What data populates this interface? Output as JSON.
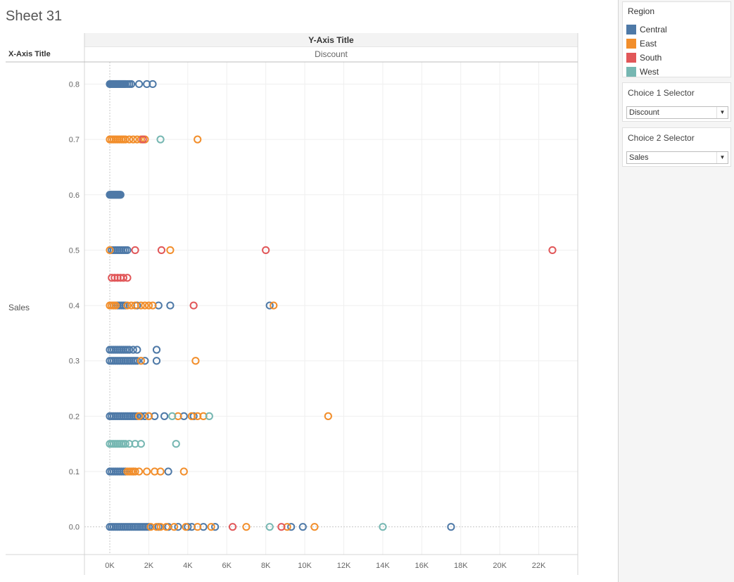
{
  "sheet": {
    "title": "Sheet 31"
  },
  "column_header": {
    "axis_title": "Y-Axis Title",
    "field": "Discount"
  },
  "row_header": {
    "axis_title": "X-Axis Title",
    "field": "Sales"
  },
  "legend": {
    "title": "Region",
    "items": [
      {
        "label": "Central",
        "color": "#4e79a7"
      },
      {
        "label": "East",
        "color": "#f28e2b"
      },
      {
        "label": "South",
        "color": "#e15759"
      },
      {
        "label": "West",
        "color": "#76b7b2"
      }
    ]
  },
  "selectors": [
    {
      "title": "Choice 1 Selector",
      "value": "Discount"
    },
    {
      "title": "Choice 2 Selector",
      "value": "Sales"
    }
  ],
  "chart_data": {
    "type": "scatter",
    "x_ticks": [
      "0K",
      "2K",
      "4K",
      "6K",
      "8K",
      "10K",
      "12K",
      "14K",
      "16K",
      "18K",
      "20K",
      "22K"
    ],
    "y_ticks": [
      "0.0",
      "0.1",
      "0.2",
      "0.3",
      "0.4",
      "0.5",
      "0.6",
      "0.7",
      "0.8"
    ],
    "xlim": [
      -1300,
      24000
    ],
    "ylim": [
      -0.05,
      0.84
    ],
    "grid": true,
    "legend_position": "right",
    "mark": "open-circle",
    "series": [
      {
        "name": "Central",
        "points": [
          [
            0.8,
            0
          ],
          [
            0.8,
            50
          ],
          [
            0.8,
            100
          ],
          [
            0.8,
            150
          ],
          [
            0.8,
            200
          ],
          [
            0.8,
            250
          ],
          [
            0.8,
            300
          ],
          [
            0.8,
            350
          ],
          [
            0.8,
            400
          ],
          [
            0.8,
            450
          ],
          [
            0.8,
            500
          ],
          [
            0.8,
            550
          ],
          [
            0.8,
            600
          ],
          [
            0.8,
            650
          ],
          [
            0.8,
            700
          ],
          [
            0.8,
            750
          ],
          [
            0.8,
            800
          ],
          [
            0.8,
            900
          ],
          [
            0.8,
            1000
          ],
          [
            0.8,
            1100
          ],
          [
            0.8,
            1500
          ],
          [
            0.8,
            1900
          ],
          [
            0.8,
            2200
          ],
          [
            0.6,
            0
          ],
          [
            0.6,
            50
          ],
          [
            0.6,
            100
          ],
          [
            0.6,
            150
          ],
          [
            0.6,
            200
          ],
          [
            0.6,
            250
          ],
          [
            0.6,
            300
          ],
          [
            0.6,
            350
          ],
          [
            0.6,
            400
          ],
          [
            0.6,
            450
          ],
          [
            0.6,
            500
          ],
          [
            0.6,
            550
          ],
          [
            0.5,
            100
          ],
          [
            0.5,
            200
          ],
          [
            0.5,
            300
          ],
          [
            0.5,
            400
          ],
          [
            0.5,
            500
          ],
          [
            0.5,
            600
          ],
          [
            0.5,
            700
          ],
          [
            0.5,
            800
          ],
          [
            0.5,
            900
          ],
          [
            0.4,
            200
          ],
          [
            0.4,
            300
          ],
          [
            0.4,
            400
          ],
          [
            0.4,
            500
          ],
          [
            0.4,
            600
          ],
          [
            0.4,
            700
          ],
          [
            0.4,
            800
          ],
          [
            0.4,
            1400
          ],
          [
            0.4,
            2500
          ],
          [
            0.4,
            3100
          ],
          [
            0.4,
            8200
          ],
          [
            0.32,
            0
          ],
          [
            0.32,
            100
          ],
          [
            0.32,
            200
          ],
          [
            0.32,
            300
          ],
          [
            0.32,
            400
          ],
          [
            0.32,
            500
          ],
          [
            0.32,
            600
          ],
          [
            0.32,
            700
          ],
          [
            0.32,
            800
          ],
          [
            0.32,
            900
          ],
          [
            0.32,
            1000
          ],
          [
            0.32,
            1200
          ],
          [
            0.32,
            1400
          ],
          [
            0.32,
            2400
          ],
          [
            0.3,
            0
          ],
          [
            0.3,
            100
          ],
          [
            0.3,
            200
          ],
          [
            0.3,
            300
          ],
          [
            0.3,
            400
          ],
          [
            0.3,
            500
          ],
          [
            0.3,
            600
          ],
          [
            0.3,
            700
          ],
          [
            0.3,
            800
          ],
          [
            0.3,
            900
          ],
          [
            0.3,
            1000
          ],
          [
            0.3,
            1100
          ],
          [
            0.3,
            1200
          ],
          [
            0.3,
            1300
          ],
          [
            0.3,
            1400
          ],
          [
            0.3,
            1800
          ],
          [
            0.3,
            2400
          ],
          [
            0.2,
            0
          ],
          [
            0.2,
            100
          ],
          [
            0.2,
            200
          ],
          [
            0.2,
            300
          ],
          [
            0.2,
            400
          ],
          [
            0.2,
            500
          ],
          [
            0.2,
            600
          ],
          [
            0.2,
            700
          ],
          [
            0.2,
            800
          ],
          [
            0.2,
            900
          ],
          [
            0.2,
            1000
          ],
          [
            0.2,
            1100
          ],
          [
            0.2,
            1200
          ],
          [
            0.2,
            1300
          ],
          [
            0.2,
            1400
          ],
          [
            0.2,
            1600
          ],
          [
            0.2,
            1800
          ],
          [
            0.2,
            2000
          ],
          [
            0.2,
            2300
          ],
          [
            0.2,
            2800
          ],
          [
            0.2,
            3800
          ],
          [
            0.2,
            4300
          ],
          [
            0.1,
            0
          ],
          [
            0.1,
            100
          ],
          [
            0.1,
            200
          ],
          [
            0.1,
            300
          ],
          [
            0.1,
            400
          ],
          [
            0.1,
            500
          ],
          [
            0.1,
            600
          ],
          [
            0.1,
            700
          ],
          [
            0.1,
            800
          ],
          [
            0.1,
            1200
          ],
          [
            0.1,
            3000
          ],
          [
            0.0,
            0
          ],
          [
            0.0,
            100
          ],
          [
            0.0,
            200
          ],
          [
            0.0,
            300
          ],
          [
            0.0,
            400
          ],
          [
            0.0,
            500
          ],
          [
            0.0,
            600
          ],
          [
            0.0,
            700
          ],
          [
            0.0,
            800
          ],
          [
            0.0,
            900
          ],
          [
            0.0,
            1000
          ],
          [
            0.0,
            1100
          ],
          [
            0.0,
            1200
          ],
          [
            0.0,
            1300
          ],
          [
            0.0,
            1400
          ],
          [
            0.0,
            1500
          ],
          [
            0.0,
            1600
          ],
          [
            0.0,
            1700
          ],
          [
            0.0,
            1800
          ],
          [
            0.0,
            1900
          ],
          [
            0.0,
            2000
          ],
          [
            0.0,
            2500
          ],
          [
            0.0,
            3000
          ],
          [
            0.0,
            3500
          ],
          [
            0.0,
            4000
          ],
          [
            0.0,
            4200
          ],
          [
            0.0,
            4800
          ],
          [
            0.0,
            5400
          ],
          [
            0.0,
            9300
          ],
          [
            0.0,
            9900
          ],
          [
            0.0,
            17500
          ]
        ]
      },
      {
        "name": "East",
        "points": [
          [
            0.7,
            0
          ],
          [
            0.7,
            100
          ],
          [
            0.7,
            200
          ],
          [
            0.7,
            300
          ],
          [
            0.7,
            400
          ],
          [
            0.7,
            500
          ],
          [
            0.7,
            600
          ],
          [
            0.7,
            700
          ],
          [
            0.7,
            800
          ],
          [
            0.7,
            1000
          ],
          [
            0.7,
            1200
          ],
          [
            0.7,
            1400
          ],
          [
            0.7,
            1600
          ],
          [
            0.7,
            1800
          ],
          [
            0.7,
            4500
          ],
          [
            0.5,
            0
          ],
          [
            0.5,
            3100
          ],
          [
            0.4,
            0
          ],
          [
            0.4,
            100
          ],
          [
            0.4,
            200
          ],
          [
            0.4,
            300
          ],
          [
            0.4,
            900
          ],
          [
            0.4,
            1100
          ],
          [
            0.4,
            1300
          ],
          [
            0.4,
            1600
          ],
          [
            0.4,
            1800
          ],
          [
            0.4,
            2000
          ],
          [
            0.4,
            2200
          ],
          [
            0.4,
            8400
          ],
          [
            0.3,
            1600
          ],
          [
            0.3,
            4400
          ],
          [
            0.2,
            1500
          ],
          [
            0.2,
            2000
          ],
          [
            0.2,
            3500
          ],
          [
            0.2,
            4200
          ],
          [
            0.2,
            4500
          ],
          [
            0.2,
            4800
          ],
          [
            0.2,
            11200
          ],
          [
            0.1,
            900
          ],
          [
            0.1,
            1000
          ],
          [
            0.1,
            1100
          ],
          [
            0.1,
            1200
          ],
          [
            0.1,
            1300
          ],
          [
            0.1,
            1500
          ],
          [
            0.1,
            1900
          ],
          [
            0.1,
            2300
          ],
          [
            0.1,
            2600
          ],
          [
            0.1,
            3800
          ],
          [
            0.0,
            2100
          ],
          [
            0.0,
            2400
          ],
          [
            0.0,
            2600
          ],
          [
            0.0,
            2900
          ],
          [
            0.0,
            3300
          ],
          [
            0.0,
            3900
          ],
          [
            0.0,
            4500
          ],
          [
            0.0,
            5200
          ],
          [
            0.0,
            7000
          ],
          [
            0.0,
            9100
          ],
          [
            0.0,
            10500
          ]
        ]
      },
      {
        "name": "South",
        "points": [
          [
            0.7,
            1700
          ],
          [
            0.5,
            1300
          ],
          [
            0.5,
            2650
          ],
          [
            0.5,
            8000
          ],
          [
            0.5,
            22700
          ],
          [
            0.45,
            100
          ],
          [
            0.45,
            250
          ],
          [
            0.45,
            400
          ],
          [
            0.45,
            550
          ],
          [
            0.45,
            700
          ],
          [
            0.45,
            900
          ],
          [
            0.4,
            4300
          ],
          [
            0.0,
            6300
          ],
          [
            0.0,
            8800
          ]
        ]
      },
      {
        "name": "West",
        "points": [
          [
            0.7,
            2600
          ],
          [
            0.2,
            3200
          ],
          [
            0.2,
            5100
          ],
          [
            0.15,
            0
          ],
          [
            0.15,
            100
          ],
          [
            0.15,
            200
          ],
          [
            0.15,
            300
          ],
          [
            0.15,
            400
          ],
          [
            0.15,
            500
          ],
          [
            0.15,
            600
          ],
          [
            0.15,
            700
          ],
          [
            0.15,
            800
          ],
          [
            0.15,
            1000
          ],
          [
            0.15,
            1300
          ],
          [
            0.15,
            1600
          ],
          [
            0.15,
            3400
          ],
          [
            0.0,
            8200
          ],
          [
            0.0,
            14000
          ]
        ]
      }
    ]
  }
}
